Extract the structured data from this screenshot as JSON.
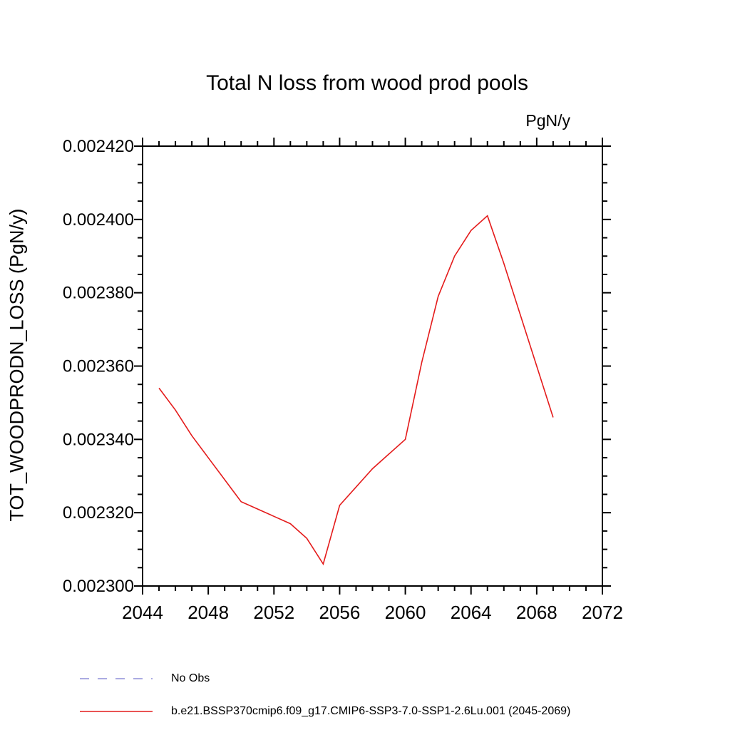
{
  "title": "Total N loss from wood prod pools",
  "unit_label": "PgN/y",
  "y_axis_label": "TOT_WOODPRODN_LOSS  (PgN/y)",
  "colors": {
    "axis": "#000000",
    "series_red": "#e41b1b",
    "no_obs_dash": "#8f8fd9"
  },
  "legend": [
    {
      "label": "No Obs",
      "color": "#8f8fd9",
      "style": "dashed"
    },
    {
      "label": "b.e21.BSSP370cmip6.f09_g17.CMIP6-SSP3-7.0-SSP1-2.6Lu.001 (2045-2069)",
      "color": "#e41b1b",
      "style": "solid"
    }
  ],
  "chart_data": {
    "type": "line",
    "title": "Total N loss from wood prod pools",
    "ylabel": "TOT_WOODPRODN_LOSS  (PgN/y)",
    "units": "PgN/y",
    "grid": false,
    "xlim": [
      2044,
      2072
    ],
    "ylim": [
      0.0023,
      0.00242
    ],
    "x_major_ticks": [
      2044,
      2048,
      2052,
      2056,
      2060,
      2064,
      2068,
      2072
    ],
    "x_minor_step": 1,
    "y_major_ticks": [
      0.0023,
      0.00232,
      0.00234,
      0.00236,
      0.00238,
      0.0024,
      0.00242
    ],
    "y_tick_labels": [
      "0.002300",
      "0.002320",
      "0.002340",
      "0.002360",
      "0.002380",
      "0.002400",
      "0.002420"
    ],
    "y_minor_step": 5e-06,
    "x": [
      2045,
      2046,
      2047,
      2048,
      2049,
      2050,
      2051,
      2052,
      2053,
      2054,
      2055,
      2056,
      2057,
      2058,
      2059,
      2060,
      2061,
      2062,
      2063,
      2064,
      2065,
      2066,
      2067,
      2068,
      2069
    ],
    "series": [
      {
        "name": "b.e21.BSSP370cmip6.f09_g17.CMIP6-SSP3-7.0-SSP1-2.6Lu.001 (2045-2069)",
        "color": "#e41b1b",
        "values": [
          0.002354,
          0.002348,
          0.002341,
          0.002335,
          0.002329,
          0.002323,
          0.002321,
          0.002319,
          0.002317,
          0.002313,
          0.002306,
          0.002322,
          0.002327,
          0.002332,
          0.002336,
          0.00234,
          0.002361,
          0.002379,
          0.00239,
          0.002397,
          0.002401,
          0.002388,
          0.002374,
          0.00236,
          0.002346
        ]
      }
    ]
  }
}
